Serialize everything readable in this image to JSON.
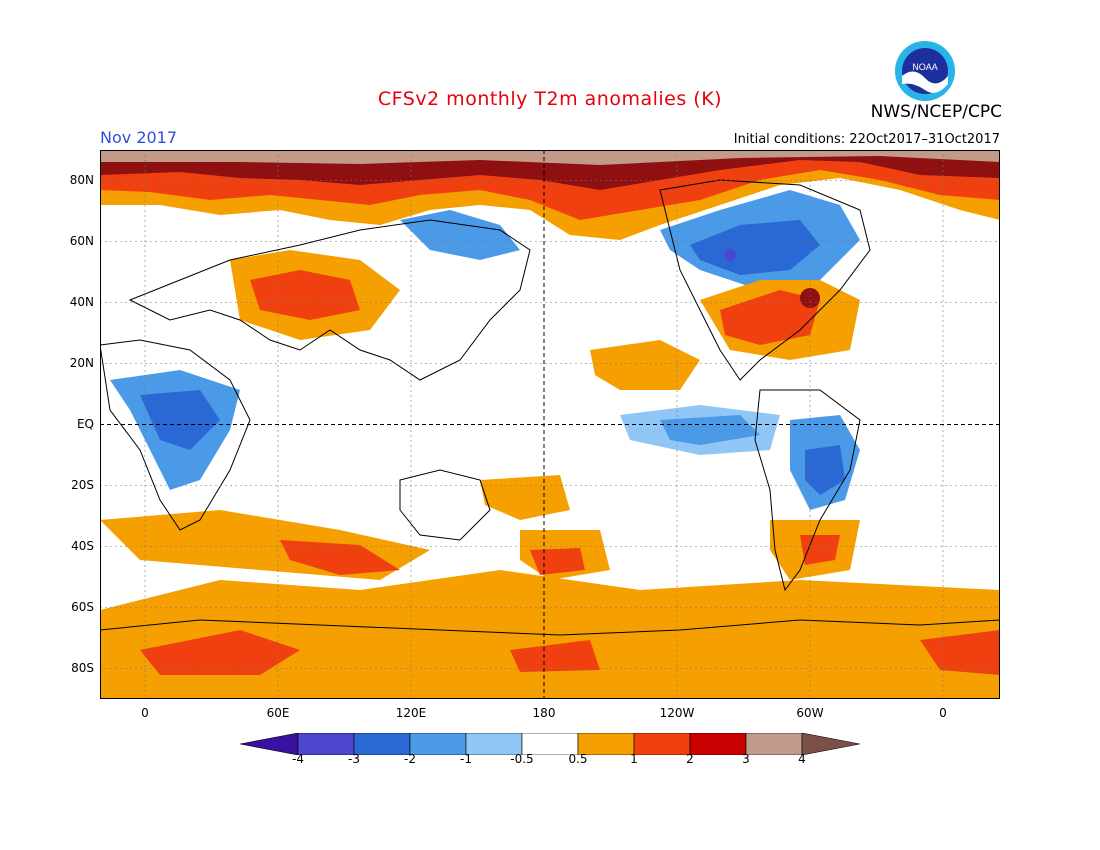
{
  "header": {
    "title": "CFSv2 monthly T2m anomalies (K)",
    "month": "Nov 2017",
    "initial_conditions": "Initial conditions: 22Oct2017–31Oct2017",
    "agency": "NWS/NCEP/CPC",
    "logo_text": "NOAA"
  },
  "colors": {
    "title": "#e8000b",
    "month": "#2f4fd8",
    "neg4": "#3a10a0",
    "neg3": "#4d46cf",
    "neg2": "#2a68d6",
    "neg1": "#4a9ae8",
    "neg05": "#8fc6f5",
    "zero": "#ffffff",
    "pos05": "#f5a000",
    "pos1": "#f04010",
    "pos2": "#c80000",
    "pos3": "#8e1010",
    "pos4": "#c29a8a",
    "pos5": "#7a5048"
  },
  "axes": {
    "lat_labels": [
      "80N",
      "60N",
      "40N",
      "20N",
      "EQ",
      "20S",
      "40S",
      "60S",
      "80S"
    ],
    "lon_labels": [
      "0",
      "60E",
      "120E",
      "180",
      "120W",
      "60W",
      "0"
    ]
  },
  "colorbar": {
    "labels": [
      "-4",
      "-3",
      "-2",
      "-1",
      "-0.5",
      "0.5",
      "1",
      "2",
      "3",
      "4"
    ]
  }
}
